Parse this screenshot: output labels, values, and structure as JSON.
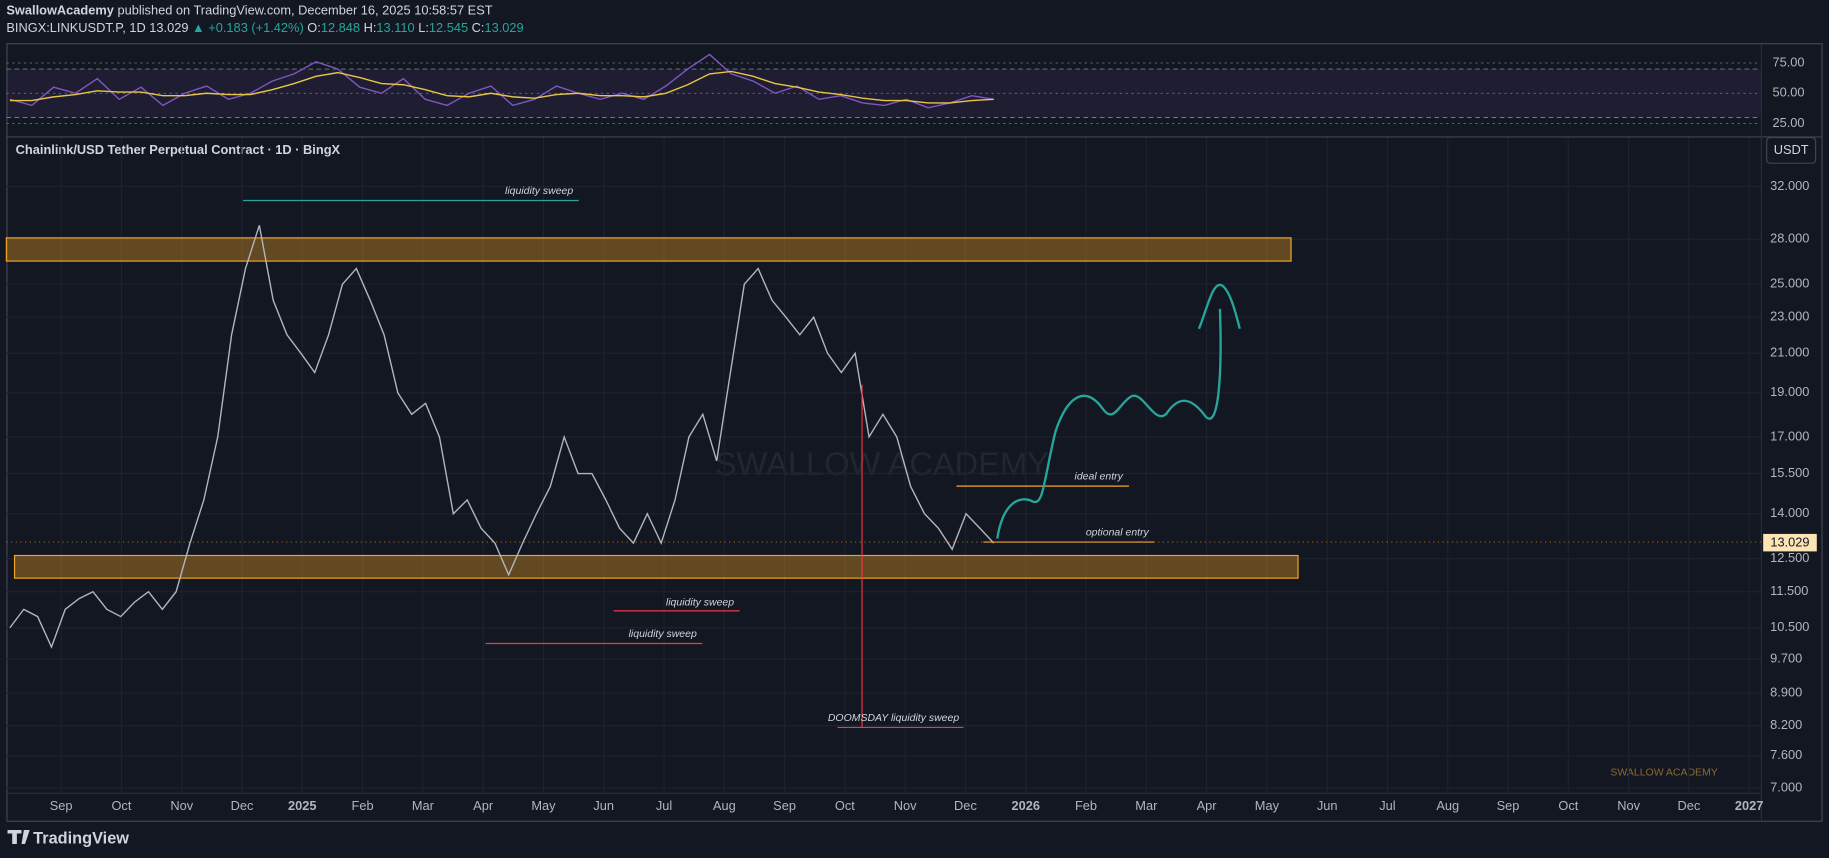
{
  "header": {
    "publisher": "SwallowAcademy",
    "published_text": "published on TradingView.com, December 16, 2025 10:58:57 EST"
  },
  "symbol_bar": {
    "symbol": "BINGX:LINKUSDT.P, 1D",
    "last": "13.029",
    "change": "▲ +0.183 (+1.42%)",
    "open_label": "O:",
    "open": "12.848",
    "high_label": "H:",
    "high": "13.110",
    "low_label": "L:",
    "low": "12.545",
    "close_label": "C:",
    "close": "13.029"
  },
  "currency_button": "USDT",
  "watermarks": [
    "SWALLOW ACADEMY",
    "SWALLOW ACADEMY"
  ],
  "logo": "TradingView",
  "chart_data": [
    {
      "type": "line",
      "ylim": [
        15.4,
        90.4
      ],
      "yticks": [
        {
          "value": 75,
          "label": "75.00"
        },
        {
          "value": 50,
          "label": "50.00"
        },
        {
          "value": 25,
          "label": "25.00"
        }
      ],
      "bands": [
        30,
        70
      ],
      "series": [
        {
          "color": "#7e57c2",
          "values": [
            45,
            40,
            55,
            50,
            62,
            45,
            55,
            40,
            50,
            56,
            45,
            50,
            60,
            66,
            76,
            70,
            55,
            50,
            62,
            45,
            40,
            50,
            56,
            40,
            45,
            56,
            50,
            45,
            50,
            45,
            56,
            70,
            82,
            66,
            60,
            50,
            56,
            45,
            48,
            42,
            40,
            45,
            38,
            42,
            48,
            45
          ]
        },
        {
          "color": "#e8c547",
          "values": [
            44,
            44,
            47,
            49,
            52,
            51,
            51,
            48,
            48,
            50,
            49,
            49,
            53,
            58,
            64,
            67,
            63,
            58,
            57,
            53,
            48,
            47,
            50,
            47,
            46,
            49,
            50,
            48,
            48,
            47,
            50,
            57,
            66,
            68,
            64,
            58,
            55,
            51,
            49,
            46,
            44,
            44,
            42,
            42,
            44,
            45
          ]
        }
      ]
    },
    {
      "type": "line",
      "title": "Chainlink/USD Tether Perpetual Contract · 1D · BingX",
      "log_scale": true,
      "ylim": [
        6.45,
        36.2
      ],
      "yticks": [
        {
          "value": 32,
          "label": "32.000"
        },
        {
          "value": 28,
          "label": "28.000"
        },
        {
          "value": 25,
          "label": "25.000"
        },
        {
          "value": 23,
          "label": "23.000"
        },
        {
          "value": 21,
          "label": "21.000"
        },
        {
          "value": 19,
          "label": "19.000"
        },
        {
          "value": 17,
          "label": "17.000"
        },
        {
          "value": 15.5,
          "label": "15.500"
        },
        {
          "value": 14,
          "label": "14.000"
        },
        {
          "value": 12.5,
          "label": "12.500"
        },
        {
          "value": 11.5,
          "label": "11.500"
        },
        {
          "value": 10.5,
          "label": "10.500"
        },
        {
          "value": 9.7,
          "label": "9.700"
        },
        {
          "value": 8.9,
          "label": "8.900"
        },
        {
          "value": 8.2,
          "label": "8.200"
        },
        {
          "value": 7.6,
          "label": "7.600"
        },
        {
          "value": 7,
          "label": "7.000"
        }
      ],
      "time_axis_labels": [
        "Sep",
        "Oct",
        "Nov",
        "Dec",
        "2025",
        "Feb",
        "Mar",
        "Apr",
        "May",
        "Jun",
        "Jul",
        "Aug",
        "Sep",
        "Oct",
        "Nov",
        "Dec",
        "2026",
        "Feb",
        "Mar",
        "Apr",
        "May",
        "Jun",
        "Jul",
        "Aug",
        "Sep",
        "Oct",
        "Nov",
        "Dec",
        "2027"
      ],
      "zones": [
        [
          26.5,
          28.1
        ],
        [
          11.9,
          12.6
        ]
      ],
      "series": [
        {
          "color": "#b2b5be",
          "values": [
            10.5,
            11,
            10.8,
            10,
            11,
            11.3,
            11.5,
            11,
            10.8,
            11.2,
            11.5,
            11,
            11.5,
            13,
            14.5,
            17,
            22,
            26,
            29,
            24,
            22,
            21,
            20,
            22,
            25,
            26,
            24,
            22,
            19,
            18,
            18.5,
            17,
            14,
            14.5,
            13.5,
            13,
            12,
            13,
            14,
            15,
            17,
            15.5,
            15.5,
            14.5,
            13.5,
            13,
            14,
            13,
            14.5,
            17,
            18,
            16,
            20,
            25,
            26,
            24,
            23,
            22,
            23,
            21,
            20,
            21,
            17,
            18,
            17,
            15,
            14,
            13.5,
            12.8,
            14,
            13.5,
            13
          ]
        }
      ],
      "annotations": [
        "liquidity sweep",
        "liquidity sweep",
        "liquidity sweep",
        "DOOMSDAY liquidity sweep",
        "ideal entry",
        "optional entry"
      ]
    }
  ]
}
